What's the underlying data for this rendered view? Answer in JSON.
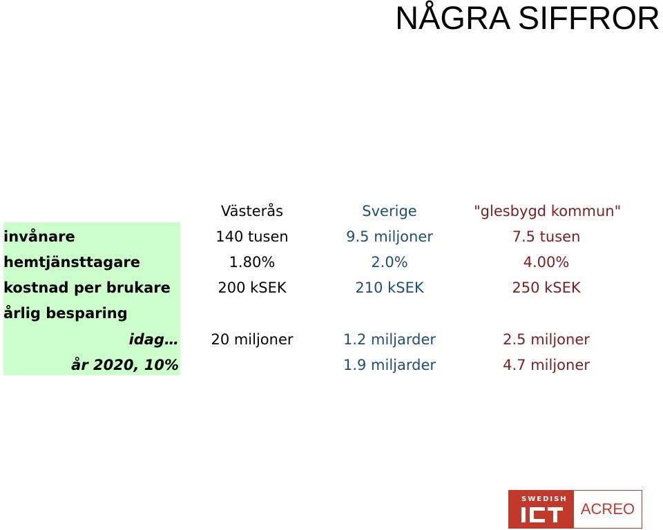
{
  "title": "NÅGRA SIFFROR",
  "headers": {
    "col1": "Västerås",
    "col2": "Sverige",
    "col3": "\"glesbygd kommun\""
  },
  "rows": [
    {
      "label": "invånare",
      "c1": "140 tusen",
      "c2": "9.5 miljoner",
      "c3": "7.5 tusen"
    },
    {
      "label": "hemtjänsttagare",
      "c1": "1.80%",
      "c2": "2.0%",
      "c3": "4.00%"
    },
    {
      "label": "kostnad per brukare",
      "c1": "200 kSEK",
      "c2": "210 kSEK",
      "c3": "250 kSEK"
    },
    {
      "label": "årlig besparing",
      "c1": "",
      "c2": "",
      "c3": ""
    },
    {
      "label": "idag…",
      "c1": "20 miljoner",
      "c2": "1.2 miljarder",
      "c3": "2.5 miljoner"
    },
    {
      "label": "år 2020, 10%",
      "c1": "",
      "c2": "1.9 miljarder",
      "c3": "4.7 miljoner"
    }
  ],
  "logo": {
    "left_text": "SWEDISH",
    "right_text": "ACREO"
  }
}
